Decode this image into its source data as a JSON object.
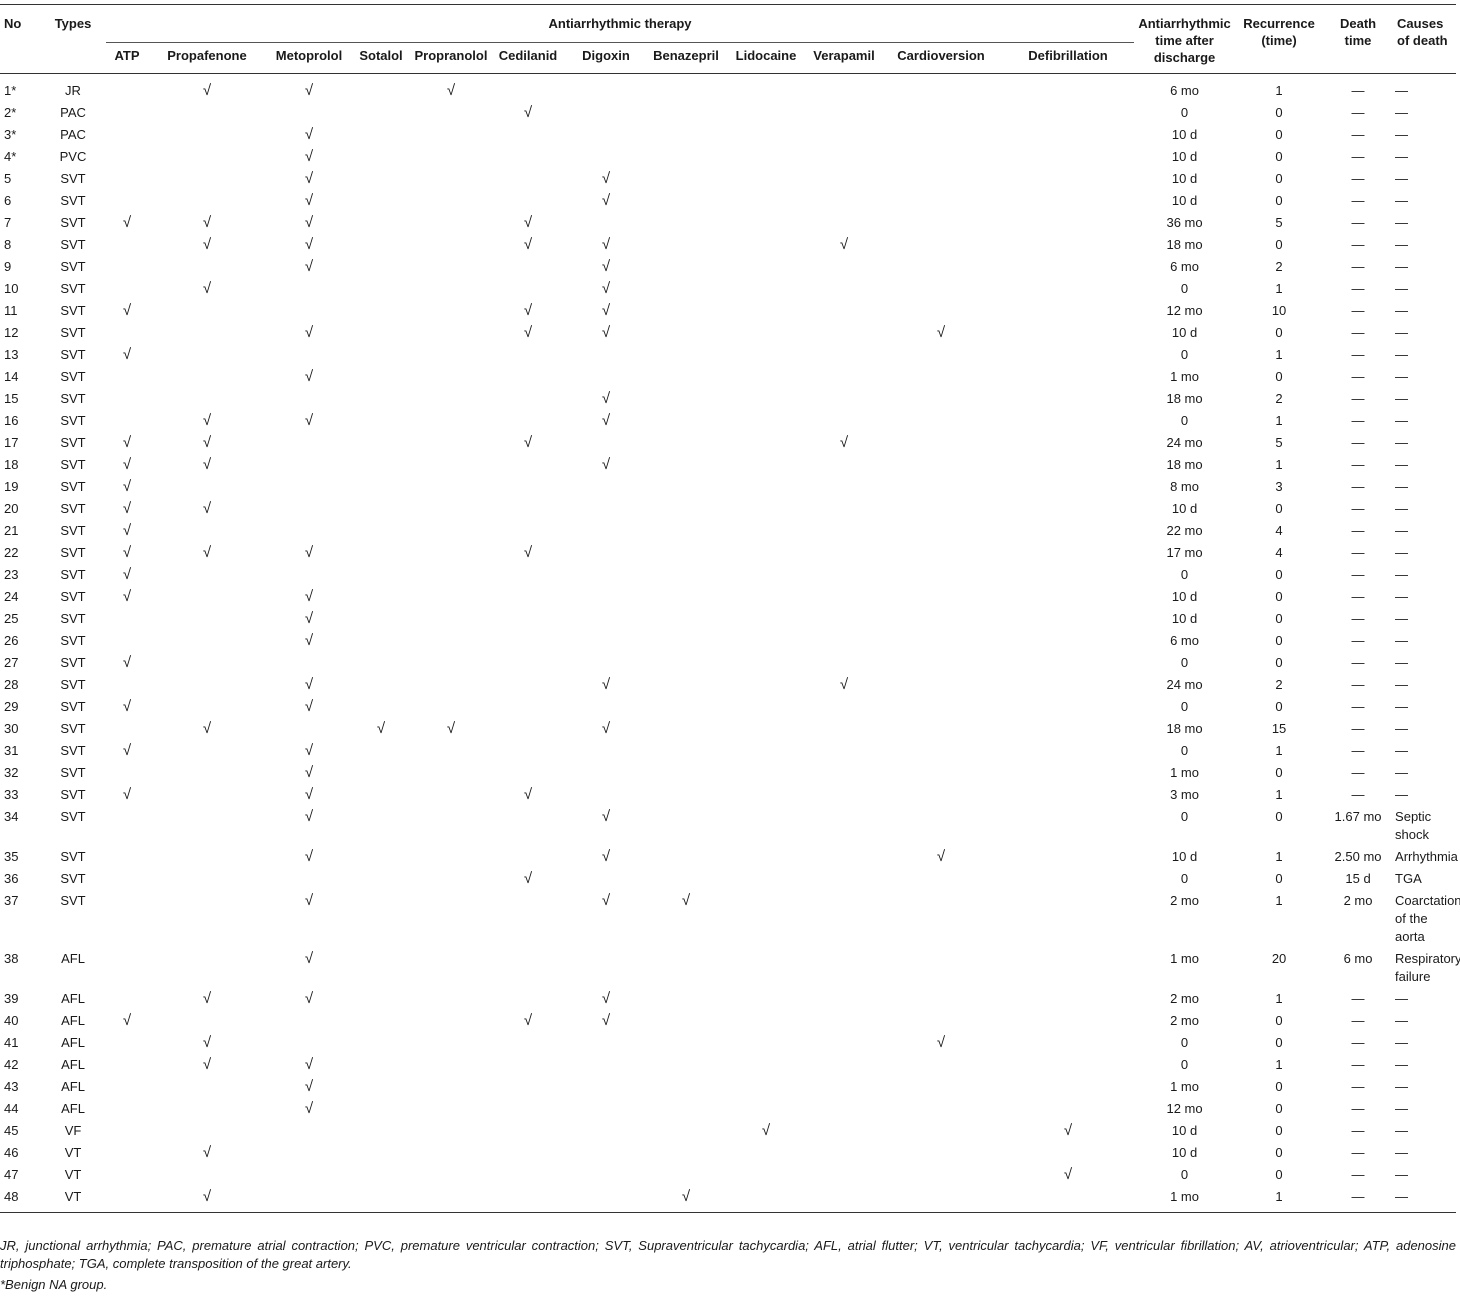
{
  "table": {
    "headers": {
      "no": "No",
      "types": "Types",
      "therapy_group": "Antiarrhythmic therapy",
      "therapies": [
        "ATP",
        "Propafenone",
        "Metoprolol",
        "Sotalol",
        "Propranolol",
        "Cedilanid",
        "Digoxin",
        "Benazepril",
        "Lidocaine",
        "Verapamil",
        "Cardioversion",
        "Defibrillation"
      ],
      "time_after_discharge": "Antiarrhythmic time after discharge",
      "recurrence": "Recurrence (time)",
      "death_time": "Death time",
      "causes_of_death": "Causes of death"
    },
    "check_symbol": "√",
    "rows": [
      {
        "no": "1*",
        "type": "JR",
        "therapies": [
          "Propafenone",
          "Metoprolol",
          "Propranolol"
        ],
        "time": "6 mo",
        "recurrence": "1",
        "death_time": "—",
        "cause": "—"
      },
      {
        "no": "2*",
        "type": "PAC",
        "therapies": [
          "Cedilanid"
        ],
        "time": "0",
        "recurrence": "0",
        "death_time": "—",
        "cause": "—"
      },
      {
        "no": "3*",
        "type": "PAC",
        "therapies": [
          "Metoprolol"
        ],
        "time": "10 d",
        "recurrence": "0",
        "death_time": "—",
        "cause": "—"
      },
      {
        "no": "4*",
        "type": "PVC",
        "therapies": [
          "Metoprolol"
        ],
        "time": "10 d",
        "recurrence": "0",
        "death_time": "—",
        "cause": "—"
      },
      {
        "no": "5",
        "type": "SVT",
        "therapies": [
          "Metoprolol",
          "Digoxin"
        ],
        "time": "10 d",
        "recurrence": "0",
        "death_time": "—",
        "cause": "—"
      },
      {
        "no": "6",
        "type": "SVT",
        "therapies": [
          "Metoprolol",
          "Digoxin"
        ],
        "time": "10 d",
        "recurrence": "0",
        "death_time": "—",
        "cause": "—"
      },
      {
        "no": "7",
        "type": "SVT",
        "therapies": [
          "ATP",
          "Propafenone",
          "Metoprolol",
          "Cedilanid"
        ],
        "time": "36 mo",
        "recurrence": "5",
        "death_time": "—",
        "cause": "—"
      },
      {
        "no": "8",
        "type": "SVT",
        "therapies": [
          "Propafenone",
          "Metoprolol",
          "Cedilanid",
          "Digoxin",
          "Verapamil"
        ],
        "time": "18 mo",
        "recurrence": "0",
        "death_time": "—",
        "cause": "—"
      },
      {
        "no": "9",
        "type": "SVT",
        "therapies": [
          "Metoprolol",
          "Digoxin"
        ],
        "time": "6 mo",
        "recurrence": "2",
        "death_time": "—",
        "cause": "—"
      },
      {
        "no": "10",
        "type": "SVT",
        "therapies": [
          "Propafenone",
          "Digoxin"
        ],
        "time": "0",
        "recurrence": "1",
        "death_time": "—",
        "cause": "—"
      },
      {
        "no": "11",
        "type": "SVT",
        "therapies": [
          "ATP",
          "Cedilanid",
          "Digoxin"
        ],
        "time": "12 mo",
        "recurrence": "10",
        "death_time": "—",
        "cause": "—"
      },
      {
        "no": "12",
        "type": "SVT",
        "therapies": [
          "Metoprolol",
          "Cedilanid",
          "Digoxin",
          "Cardioversion"
        ],
        "time": "10 d",
        "recurrence": "0",
        "death_time": "—",
        "cause": "—"
      },
      {
        "no": "13",
        "type": "SVT",
        "therapies": [
          "ATP"
        ],
        "time": "0",
        "recurrence": "1",
        "death_time": "—",
        "cause": "—"
      },
      {
        "no": "14",
        "type": "SVT",
        "therapies": [
          "Metoprolol"
        ],
        "time": "1 mo",
        "recurrence": "0",
        "death_time": "—",
        "cause": "—"
      },
      {
        "no": "15",
        "type": "SVT",
        "therapies": [
          "Digoxin"
        ],
        "time": "18 mo",
        "recurrence": "2",
        "death_time": "—",
        "cause": "—"
      },
      {
        "no": "16",
        "type": "SVT",
        "therapies": [
          "Propafenone",
          "Metoprolol",
          "Digoxin"
        ],
        "time": "0",
        "recurrence": "1",
        "death_time": "—",
        "cause": "—"
      },
      {
        "no": "17",
        "type": "SVT",
        "therapies": [
          "ATP",
          "Propafenone",
          "Cedilanid",
          "Verapamil"
        ],
        "time": "24 mo",
        "recurrence": "5",
        "death_time": "—",
        "cause": "—"
      },
      {
        "no": "18",
        "type": "SVT",
        "therapies": [
          "ATP",
          "Propafenone",
          "Digoxin"
        ],
        "time": "18 mo",
        "recurrence": "1",
        "death_time": "—",
        "cause": "—"
      },
      {
        "no": "19",
        "type": "SVT",
        "therapies": [
          "ATP"
        ],
        "time": "8 mo",
        "recurrence": "3",
        "death_time": "—",
        "cause": "—"
      },
      {
        "no": "20",
        "type": "SVT",
        "therapies": [
          "ATP",
          "Propafenone"
        ],
        "time": "10 d",
        "recurrence": "0",
        "death_time": "—",
        "cause": "—"
      },
      {
        "no": "21",
        "type": "SVT",
        "therapies": [
          "ATP"
        ],
        "time": "22 mo",
        "recurrence": "4",
        "death_time": "—",
        "cause": "—"
      },
      {
        "no": "22",
        "type": "SVT",
        "therapies": [
          "ATP",
          "Propafenone",
          "Metoprolol",
          "Cedilanid"
        ],
        "time": "17 mo",
        "recurrence": "4",
        "death_time": "—",
        "cause": "—"
      },
      {
        "no": "23",
        "type": "SVT",
        "therapies": [
          "ATP"
        ],
        "time": "0",
        "recurrence": "0",
        "death_time": "—",
        "cause": "—"
      },
      {
        "no": "24",
        "type": "SVT",
        "therapies": [
          "ATP",
          "Metoprolol"
        ],
        "time": "10 d",
        "recurrence": "0",
        "death_time": "—",
        "cause": "—"
      },
      {
        "no": "25",
        "type": "SVT",
        "therapies": [
          "Metoprolol"
        ],
        "time": "10 d",
        "recurrence": "0",
        "death_time": "—",
        "cause": "—"
      },
      {
        "no": "26",
        "type": "SVT",
        "therapies": [
          "Metoprolol"
        ],
        "time": "6 mo",
        "recurrence": "0",
        "death_time": "—",
        "cause": "—"
      },
      {
        "no": "27",
        "type": "SVT",
        "therapies": [
          "ATP"
        ],
        "time": "0",
        "recurrence": "0",
        "death_time": "—",
        "cause": "—"
      },
      {
        "no": "28",
        "type": "SVT",
        "therapies": [
          "Metoprolol",
          "Digoxin",
          "Verapamil"
        ],
        "time": "24 mo",
        "recurrence": "2",
        "death_time": "—",
        "cause": "—"
      },
      {
        "no": "29",
        "type": "SVT",
        "therapies": [
          "ATP",
          "Metoprolol"
        ],
        "time": "0",
        "recurrence": "0",
        "death_time": "—",
        "cause": "—"
      },
      {
        "no": "30",
        "type": "SVT",
        "therapies": [
          "Propafenone",
          "Sotalol",
          "Propranolol",
          "Digoxin"
        ],
        "time": "18 mo",
        "recurrence": "15",
        "death_time": "—",
        "cause": "—"
      },
      {
        "no": "31",
        "type": "SVT",
        "therapies": [
          "ATP",
          "Metoprolol"
        ],
        "time": "0",
        "recurrence": "1",
        "death_time": "—",
        "cause": "—"
      },
      {
        "no": "32",
        "type": "SVT",
        "therapies": [
          "Metoprolol"
        ],
        "time": "1 mo",
        "recurrence": "0",
        "death_time": "—",
        "cause": "—"
      },
      {
        "no": "33",
        "type": "SVT",
        "therapies": [
          "ATP",
          "Metoprolol",
          "Cedilanid"
        ],
        "time": "3 mo",
        "recurrence": "1",
        "death_time": "—",
        "cause": "—"
      },
      {
        "no": "34",
        "type": "SVT",
        "therapies": [
          "Metoprolol",
          "Digoxin"
        ],
        "time": "0",
        "recurrence": "0",
        "death_time": "1.67 mo",
        "cause": "Septic shock"
      },
      {
        "no": "35",
        "type": "SVT",
        "therapies": [
          "Metoprolol",
          "Digoxin",
          "Cardioversion"
        ],
        "time": "10 d",
        "recurrence": "1",
        "death_time": "2.50 mo",
        "cause": "Arrhythmia"
      },
      {
        "no": "36",
        "type": "SVT",
        "therapies": [
          "Cedilanid"
        ],
        "time": "0",
        "recurrence": "0",
        "death_time": "15 d",
        "cause": "TGA"
      },
      {
        "no": "37",
        "type": "SVT",
        "therapies": [
          "Metoprolol",
          "Digoxin",
          "Benazepril"
        ],
        "time": "2 mo",
        "recurrence": "1",
        "death_time": "2 mo",
        "cause": "Coarctation of the aorta"
      },
      {
        "no": "38",
        "type": "AFL",
        "therapies": [
          "Metoprolol"
        ],
        "time": "1 mo",
        "recurrence": "20",
        "death_time": "6 mo",
        "cause": "Respiratory failure"
      },
      {
        "no": "39",
        "type": "AFL",
        "therapies": [
          "Propafenone",
          "Metoprolol",
          "Digoxin"
        ],
        "time": "2 mo",
        "recurrence": "1",
        "death_time": "—",
        "cause": "—"
      },
      {
        "no": "40",
        "type": "AFL",
        "therapies": [
          "ATP",
          "Cedilanid",
          "Digoxin"
        ],
        "time": "2 mo",
        "recurrence": "0",
        "death_time": "—",
        "cause": "—"
      },
      {
        "no": "41",
        "type": "AFL",
        "therapies": [
          "Propafenone",
          "Cardioversion"
        ],
        "time": "0",
        "recurrence": "0",
        "death_time": "—",
        "cause": "—"
      },
      {
        "no": "42",
        "type": "AFL",
        "therapies": [
          "Propafenone",
          "Metoprolol"
        ],
        "time": "0",
        "recurrence": "1",
        "death_time": "—",
        "cause": "—"
      },
      {
        "no": "43",
        "type": "AFL",
        "therapies": [
          "Metoprolol"
        ],
        "time": "1 mo",
        "recurrence": "0",
        "death_time": "—",
        "cause": "—"
      },
      {
        "no": "44",
        "type": "AFL",
        "therapies": [
          "Metoprolol"
        ],
        "time": "12 mo",
        "recurrence": "0",
        "death_time": "—",
        "cause": "—"
      },
      {
        "no": "45",
        "type": "VF",
        "therapies": [
          "Lidocaine",
          "Defibrillation"
        ],
        "time": "10 d",
        "recurrence": "0",
        "death_time": "—",
        "cause": "—"
      },
      {
        "no": "46",
        "type": "VT",
        "therapies": [
          "Propafenone"
        ],
        "time": "10 d",
        "recurrence": "0",
        "death_time": "—",
        "cause": "—"
      },
      {
        "no": "47",
        "type": "VT",
        "therapies": [
          "Defibrillation"
        ],
        "time": "0",
        "recurrence": "0",
        "death_time": "—",
        "cause": "—"
      },
      {
        "no": "48",
        "type": "VT",
        "therapies": [
          "Propafenone",
          "Benazepril"
        ],
        "time": "1 mo",
        "recurrence": "1",
        "death_time": "—",
        "cause": "—"
      }
    ]
  },
  "footnotes": {
    "abbreviations": "JR, junctional arrhythmia; PAC, premature atrial contraction; PVC, premature ventricular contraction; SVT, Supraventricular tachycardia; AFL, atrial flutter; VT, ventricular tachycardia; VF, ventricular fibrillation; AV, atrioventricular; ATP, adenosine triphosphate; TGA, complete transposition of the great artery.",
    "benign": "*Benign NA group."
  }
}
